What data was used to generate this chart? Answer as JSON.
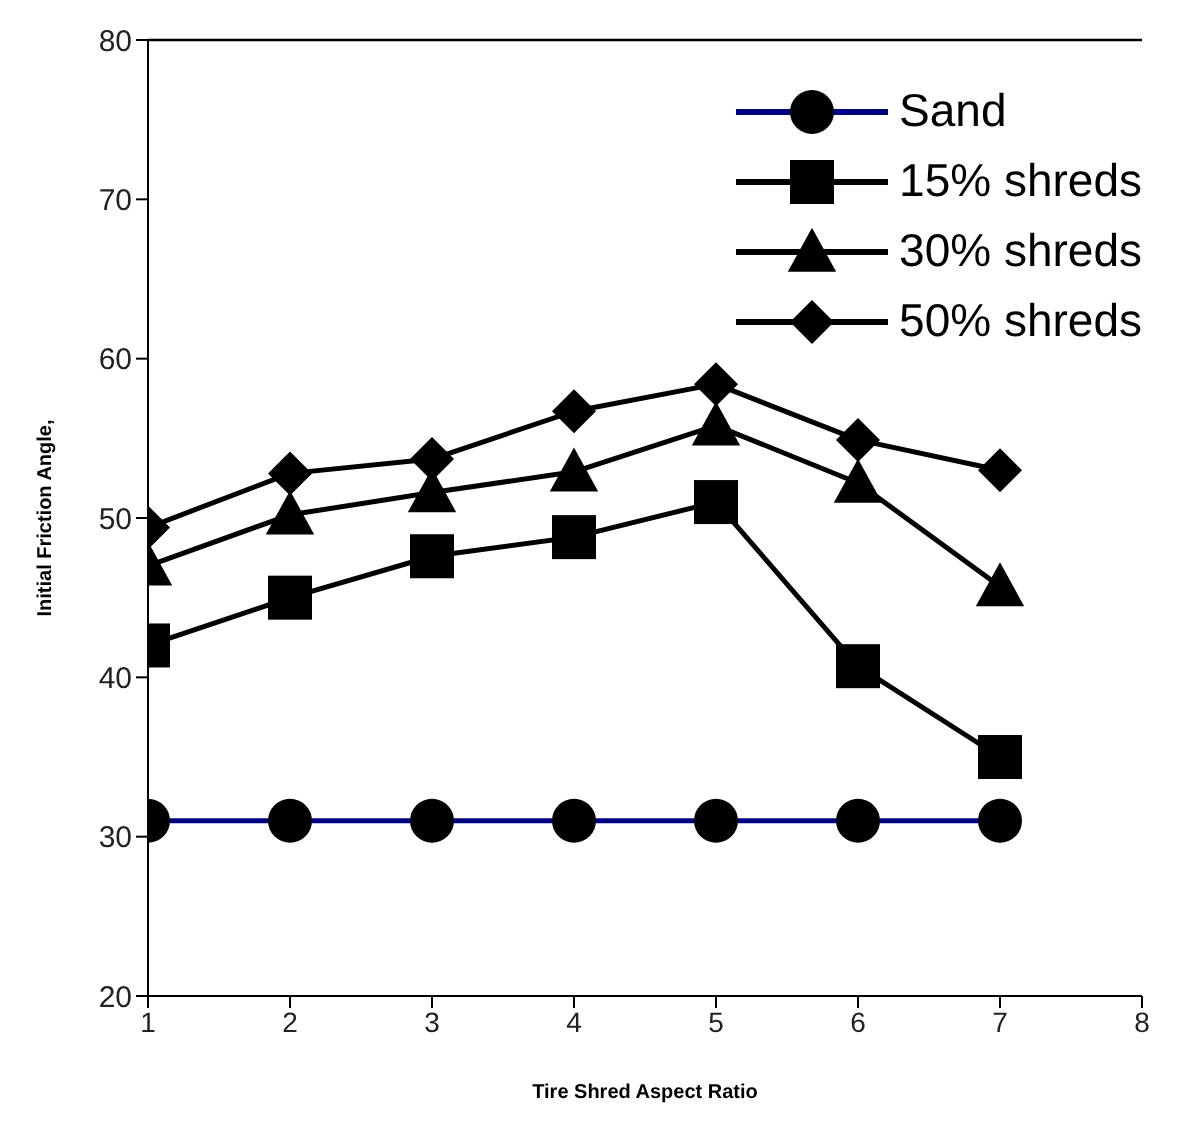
{
  "chart_data": {
    "type": "line",
    "xlabel": "Tire Shred Aspect Ratio",
    "ylabel": "Initial Friction Angle,",
    "x": [
      1,
      2,
      3,
      4,
      5,
      6,
      7
    ],
    "xlim": [
      1,
      8
    ],
    "xticks": [
      1,
      2,
      3,
      4,
      5,
      6,
      7,
      8
    ],
    "ylim": [
      20,
      80
    ],
    "yticks": [
      20,
      30,
      40,
      50,
      60,
      70,
      80
    ],
    "grid": false,
    "legend": "top right",
    "line_style": "solid",
    "series": [
      {
        "name": "Sand",
        "color": "#000080",
        "marker": "circle",
        "values": [
          31,
          31,
          31,
          31,
          31,
          31,
          31
        ]
      },
      {
        "name": "15% shreds",
        "color": "#000000",
        "marker": "square",
        "values": [
          42,
          45,
          47.6,
          48.8,
          51,
          40.7,
          35
        ]
      },
      {
        "name": "30% shreds",
        "color": "#000000",
        "marker": "triangle",
        "values": [
          47,
          50.2,
          51.6,
          52.9,
          55.8,
          52.2,
          45.7
        ]
      },
      {
        "name": "50% shreds",
        "color": "#000000",
        "marker": "diamond",
        "values": [
          49.4,
          52.8,
          53.7,
          56.7,
          58.4,
          54.9,
          53
        ]
      }
    ]
  }
}
